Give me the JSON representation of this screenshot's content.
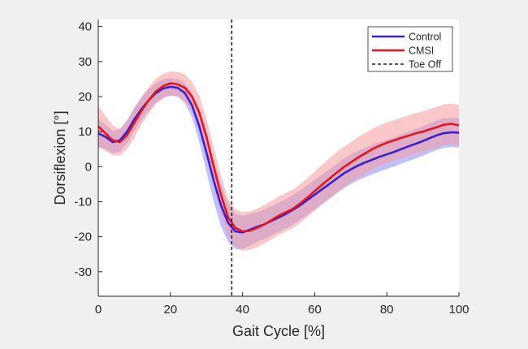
{
  "chart_data": {
    "type": "line",
    "title": "",
    "xlabel": "Gait Cycle [%]",
    "ylabel": "Dorsiflexion [°]",
    "xlim": [
      0,
      100
    ],
    "ylim": [
      -37,
      42
    ],
    "xticks": [
      0,
      20,
      40,
      60,
      80,
      100
    ],
    "yticks": [
      -30,
      -20,
      -10,
      0,
      10,
      20,
      30,
      40
    ],
    "legend_position": "top-right",
    "x": [
      0,
      2,
      4,
      6,
      8,
      10,
      12,
      14,
      16,
      18,
      20,
      22,
      24,
      26,
      28,
      30,
      32,
      34,
      36,
      38,
      40,
      42,
      44,
      46,
      48,
      50,
      52,
      54,
      56,
      58,
      60,
      62,
      64,
      66,
      68,
      70,
      72,
      74,
      76,
      78,
      80,
      82,
      84,
      86,
      88,
      90,
      92,
      94,
      96,
      98,
      100
    ],
    "series": [
      {
        "name": "Control",
        "color": "#3a1fd0",
        "band_color": "#8c8cf5",
        "mean": [
          9.5,
          8.5,
          7.0,
          7.5,
          10.0,
          13.5,
          16.5,
          19.0,
          21.0,
          22.3,
          22.8,
          22.5,
          21.0,
          17.5,
          11.5,
          4.0,
          -4.0,
          -11.0,
          -16.0,
          -18.5,
          -18.8,
          -18.0,
          -17.2,
          -16.5,
          -15.5,
          -14.5,
          -13.5,
          -12.3,
          -11.0,
          -9.5,
          -8.0,
          -6.5,
          -5.0,
          -3.5,
          -2.0,
          -0.8,
          0.3,
          1.2,
          2.0,
          2.8,
          3.5,
          4.2,
          5.0,
          5.8,
          6.5,
          7.3,
          8.2,
          9.0,
          9.6,
          9.8,
          9.7
        ],
        "sd": [
          4.0,
          3.5,
          3.2,
          3.2,
          3.3,
          3.3,
          3.2,
          3.0,
          2.8,
          2.6,
          2.5,
          2.5,
          2.8,
          3.5,
          4.5,
          5.5,
          6.0,
          6.0,
          5.5,
          5.0,
          4.8,
          4.5,
          4.3,
          4.2,
          4.2,
          4.2,
          4.2,
          4.2,
          4.2,
          4.2,
          4.2,
          4.2,
          4.2,
          4.2,
          4.2,
          4.2,
          4.2,
          4.2,
          4.2,
          4.2,
          4.2,
          4.2,
          4.2,
          4.2,
          4.2,
          4.2,
          4.2,
          4.2,
          4.2,
          4.2,
          4.2
        ]
      },
      {
        "name": "CMSI",
        "color": "#e8141e",
        "band_color": "#f59a9a",
        "mean": [
          11.5,
          9.5,
          7.5,
          7.0,
          9.0,
          12.5,
          16.0,
          19.0,
          21.5,
          23.0,
          23.8,
          23.5,
          22.5,
          20.0,
          15.5,
          8.5,
          0.0,
          -8.0,
          -14.5,
          -17.5,
          -18.5,
          -18.3,
          -17.5,
          -16.5,
          -15.3,
          -14.0,
          -13.0,
          -12.0,
          -10.5,
          -8.8,
          -7.0,
          -5.2,
          -3.5,
          -1.8,
          -0.2,
          1.2,
          2.6,
          3.8,
          5.0,
          6.0,
          6.8,
          7.5,
          8.2,
          8.8,
          9.5,
          10.0,
          10.7,
          11.3,
          12.0,
          12.2,
          11.8
        ],
        "sd": [
          5.8,
          5.0,
          4.2,
          3.8,
          4.0,
          4.2,
          4.0,
          3.8,
          3.6,
          3.5,
          3.4,
          3.5,
          3.8,
          4.2,
          4.8,
          5.2,
          5.5,
          5.5,
          5.2,
          5.3,
          5.5,
          5.5,
          5.5,
          5.5,
          5.5,
          5.5,
          5.5,
          5.5,
          5.5,
          5.5,
          5.6,
          5.7,
          5.8,
          5.8,
          5.8,
          5.8,
          5.8,
          5.8,
          5.8,
          5.8,
          5.8,
          5.8,
          5.8,
          5.8,
          5.8,
          5.8,
          5.8,
          5.8,
          5.8,
          5.8,
          5.8
        ]
      }
    ],
    "vline": {
      "name": "Toe Off",
      "x": 37
    }
  }
}
